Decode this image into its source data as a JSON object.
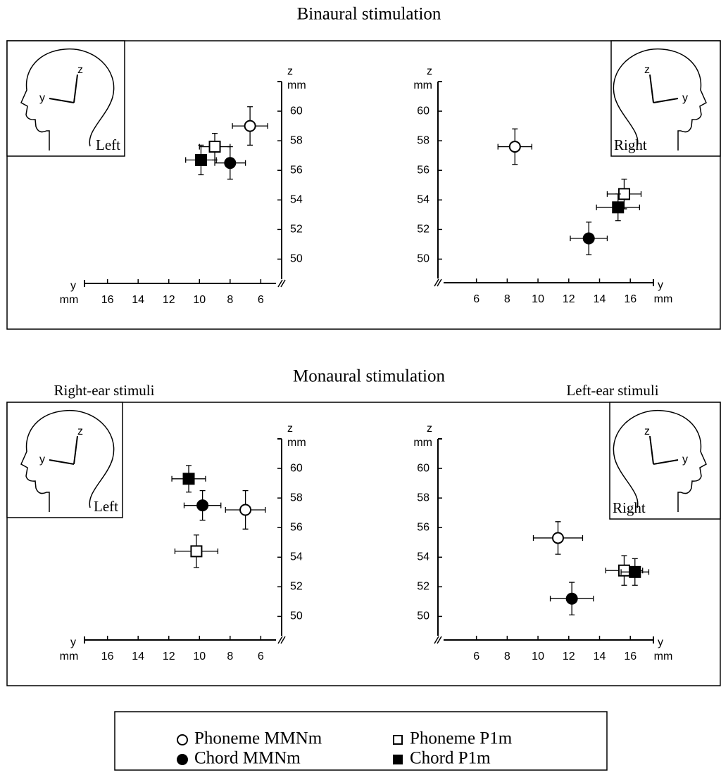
{
  "headings": [
    "Binaural stimulation",
    "Monaural stimulation"
  ],
  "legend": [
    {
      "name": "Phoneme MMNm",
      "marker": "circle",
      "color": "#ffffff"
    },
    {
      "name": "Chord MMNm",
      "marker": "circle",
      "color": "#000000"
    },
    {
      "name": "Phoneme P1m",
      "marker": "square",
      "color": "#ffffff"
    },
    {
      "name": "Chord P1m",
      "marker": "square",
      "color": "#000000"
    }
  ],
  "chart_data": [
    {
      "type": "scatter",
      "inset_label": "Left",
      "xlabel": "y",
      "xunit": "mm",
      "ylabel": "z",
      "yunit": "mm",
      "xlim": [
        17.5,
        4.5
      ],
      "xticks": [
        16,
        14,
        12,
        10,
        8,
        6
      ],
      "ylim": [
        48.5,
        62
      ],
      "yticks": [
        50,
        52,
        54,
        56,
        58,
        60
      ],
      "series": [
        {
          "x": [
            6.7
          ],
          "values": [
            59.0
          ],
          "x_err": [
            1.15
          ],
          "y_err": [
            1.3
          ]
        },
        {
          "x": [
            8.0
          ],
          "values": [
            56.5
          ],
          "x_err": [
            1.0
          ],
          "y_err": [
            1.1
          ]
        },
        {
          "x": [
            9.0
          ],
          "values": [
            57.6
          ],
          "x_err": [
            1.0
          ],
          "y_err": [
            0.9
          ]
        },
        {
          "x": [
            9.9
          ],
          "values": [
            56.7
          ],
          "x_err": [
            1.0
          ],
          "y_err": [
            1.0
          ]
        }
      ]
    },
    {
      "type": "scatter",
      "inset_label": "Right",
      "xlabel": "y",
      "xunit": "mm",
      "ylabel": "z",
      "yunit": "mm",
      "xlim": [
        3.5,
        17.5
      ],
      "xticks": [
        6,
        8,
        10,
        12,
        14,
        16
      ],
      "ylim": [
        48.5,
        62
      ],
      "yticks": [
        50,
        52,
        54,
        56,
        58,
        60
      ],
      "series": [
        {
          "x": [
            8.5
          ],
          "values": [
            57.6
          ],
          "x_err": [
            1.1
          ],
          "y_err": [
            1.2
          ]
        },
        {
          "x": [
            13.3
          ],
          "values": [
            51.4
          ],
          "x_err": [
            1.2
          ],
          "y_err": [
            1.1
          ]
        },
        {
          "x": [
            15.6
          ],
          "values": [
            54.4
          ],
          "x_err": [
            1.1
          ],
          "y_err": [
            1.0
          ]
        },
        {
          "x": [
            15.2
          ],
          "values": [
            53.5
          ],
          "x_err": [
            1.4
          ],
          "y_err": [
            0.9
          ]
        }
      ]
    },
    {
      "type": "scatter",
      "subtitle": "Right-ear stimuli",
      "inset_label": "Left",
      "xlabel": "y",
      "xunit": "mm",
      "ylabel": "z",
      "yunit": "mm",
      "xlim": [
        17.5,
        4.5
      ],
      "xticks": [
        16,
        14,
        12,
        10,
        8,
        6
      ],
      "ylim": [
        48.5,
        62
      ],
      "yticks": [
        50,
        52,
        54,
        56,
        58,
        60
      ],
      "series": [
        {
          "x": [
            7.0
          ],
          "values": [
            57.2
          ],
          "x_err": [
            1.3
          ],
          "y_err": [
            1.3
          ]
        },
        {
          "x": [
            9.8
          ],
          "values": [
            57.5
          ],
          "x_err": [
            1.2
          ],
          "y_err": [
            1.0
          ]
        },
        {
          "x": [
            10.2
          ],
          "values": [
            54.4
          ],
          "x_err": [
            1.4
          ],
          "y_err": [
            1.1
          ]
        },
        {
          "x": [
            10.7
          ],
          "values": [
            59.3
          ],
          "x_err": [
            1.1
          ],
          "y_err": [
            0.9
          ]
        }
      ]
    },
    {
      "type": "scatter",
      "subtitle": "Left-ear stimuli",
      "inset_label": "Right",
      "xlabel": "y",
      "xunit": "mm",
      "ylabel": "z",
      "yunit": "mm",
      "xlim": [
        3.5,
        17.5
      ],
      "xticks": [
        6,
        8,
        10,
        12,
        14,
        16
      ],
      "ylim": [
        48.5,
        62
      ],
      "yticks": [
        50,
        52,
        54,
        56,
        58,
        60
      ],
      "series": [
        {
          "x": [
            11.3
          ],
          "values": [
            55.3
          ],
          "x_err": [
            1.6
          ],
          "y_err": [
            1.1
          ]
        },
        {
          "x": [
            12.2
          ],
          "values": [
            51.2
          ],
          "x_err": [
            1.4
          ],
          "y_err": [
            1.1
          ]
        },
        {
          "x": [
            15.6
          ],
          "values": [
            53.1
          ],
          "x_err": [
            1.2
          ],
          "y_err": [
            1.0
          ]
        },
        {
          "x": [
            16.3
          ],
          "values": [
            53.0
          ],
          "x_err": [
            0.9
          ],
          "y_err": [
            0.9
          ]
        }
      ]
    }
  ]
}
